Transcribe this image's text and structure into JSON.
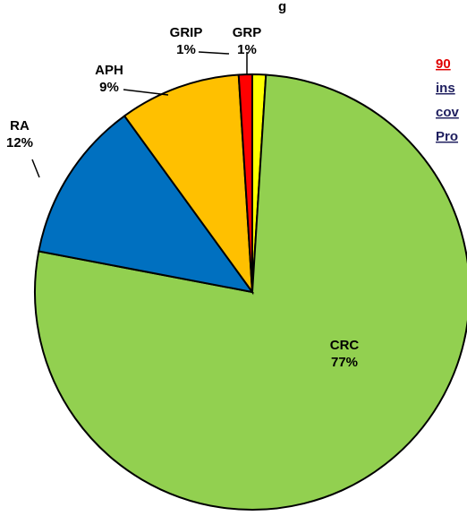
{
  "chart_data": {
    "type": "pie",
    "title": "g",
    "categories": [
      "GRP",
      "CRC",
      "RA",
      "APH",
      "GRIP"
    ],
    "values": [
      1,
      77,
      12,
      9,
      1
    ],
    "value_labels": [
      "1%",
      "77%",
      "12%",
      "9%",
      "1%"
    ],
    "colors": [
      "#ffff00",
      "#92d050",
      "#0070c0",
      "#ffc000",
      "#ff0000"
    ],
    "annotation": [
      "90",
      "ins",
      "cov",
      "Pro"
    ]
  }
}
